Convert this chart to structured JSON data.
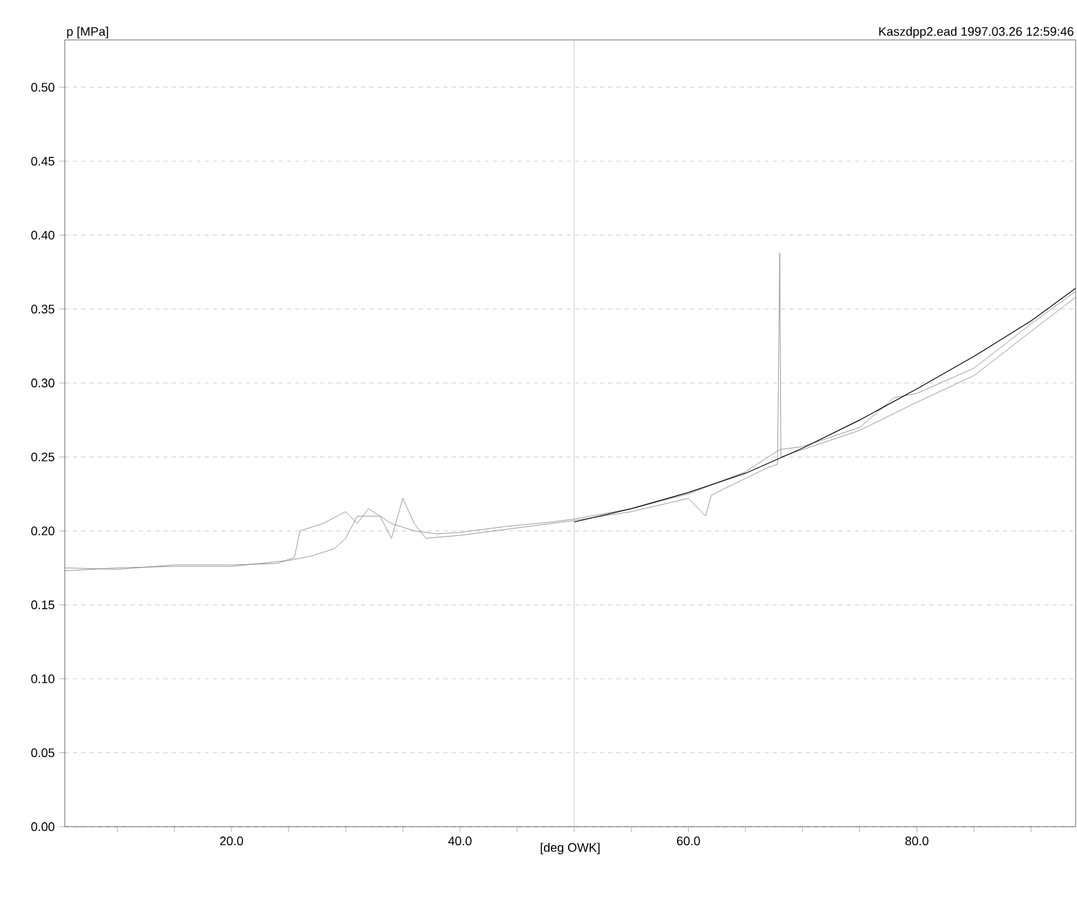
{
  "chart_data": {
    "type": "line",
    "ylabel": "p [MPa]",
    "xlabel": "[deg OWK]",
    "annotations": [
      "Kaszdpp2.ead  1997.03.26 12:59:46"
    ],
    "xlim": [
      5.4,
      93.9
    ],
    "ylim": [
      0,
      0.532
    ],
    "xticks": [
      {
        "value": 10,
        "label": null
      },
      {
        "value": 15,
        "label": null
      },
      {
        "value": 20,
        "label": "20.0"
      },
      {
        "value": 25,
        "label": null
      },
      {
        "value": 30,
        "label": null
      },
      {
        "value": 35,
        "label": null
      },
      {
        "value": 40,
        "label": "40.0"
      },
      {
        "value": 45,
        "label": null
      },
      {
        "value": 50,
        "label": null
      },
      {
        "value": 55,
        "label": null
      },
      {
        "value": 60,
        "label": "60.0"
      },
      {
        "value": 65,
        "label": null
      },
      {
        "value": 70,
        "label": null
      },
      {
        "value": 75,
        "label": null
      },
      {
        "value": 80,
        "label": "80.0"
      },
      {
        "value": 85,
        "label": null
      },
      {
        "value": 90,
        "label": null
      }
    ],
    "yticks": [
      {
        "value": 0,
        "label": "0.00"
      },
      {
        "value": 0.05,
        "label": "0.05"
      },
      {
        "value": 0.1,
        "label": "0.10"
      },
      {
        "value": 0.15,
        "label": "0.15"
      },
      {
        "value": 0.2,
        "label": "0.20"
      },
      {
        "value": 0.25,
        "label": "0.25"
      },
      {
        "value": 0.3,
        "label": "0.30"
      },
      {
        "value": 0.35,
        "label": "0.35"
      },
      {
        "value": 0.4,
        "label": "0.40"
      },
      {
        "value": 0.45,
        "label": "0.45"
      },
      {
        "value": 0.5,
        "label": "0.50"
      }
    ],
    "grid": "y",
    "marker": "none",
    "legend": false,
    "ref_lines": [
      {
        "axis": "x",
        "value": 50,
        "color": "#c0c0c0"
      }
    ],
    "series": [
      {
        "color": "#808080",
        "x": [
          5.4,
          10,
          15,
          20,
          24,
          25.5,
          26,
          28,
          30,
          31,
          32,
          34,
          36,
          38,
          40,
          44,
          48,
          50,
          55,
          60,
          65,
          68,
          70,
          75,
          78,
          80,
          85,
          90,
          93.9
        ],
        "values": [
          0.175,
          0.174,
          0.177,
          0.177,
          0.178,
          0.182,
          0.2,
          0.205,
          0.213,
          0.205,
          0.215,
          0.205,
          0.2,
          0.198,
          0.199,
          0.203,
          0.206,
          0.208,
          0.215,
          0.225,
          0.24,
          0.255,
          0.257,
          0.27,
          0.29,
          0.293,
          0.31,
          0.34,
          0.362
        ]
      },
      {
        "color": "#808080",
        "x": [
          5.4,
          10,
          15,
          20,
          25,
          27,
          29,
          30,
          31,
          33,
          34,
          35,
          36,
          37,
          40,
          45,
          50,
          55,
          60,
          61.5,
          62,
          63,
          67,
          67.8,
          67.9,
          68.0,
          68.1,
          70,
          75,
          80,
          85,
          90,
          93.9
        ],
        "values": [
          0.173,
          0.175,
          0.176,
          0.176,
          0.18,
          0.183,
          0.188,
          0.195,
          0.21,
          0.21,
          0.195,
          0.222,
          0.205,
          0.195,
          0.197,
          0.202,
          0.207,
          0.213,
          0.222,
          0.21,
          0.224,
          0.228,
          0.243,
          0.245,
          0.315,
          0.388,
          0.25,
          0.255,
          0.268,
          0.287,
          0.305,
          0.335,
          0.358
        ]
      },
      {
        "color": "#000000",
        "x": [
          50,
          55,
          60,
          65,
          70,
          75,
          80,
          85,
          90,
          93.9
        ],
        "values": [
          0.206,
          0.215,
          0.226,
          0.239,
          0.256,
          0.275,
          0.296,
          0.318,
          0.342,
          0.364
        ]
      }
    ]
  }
}
